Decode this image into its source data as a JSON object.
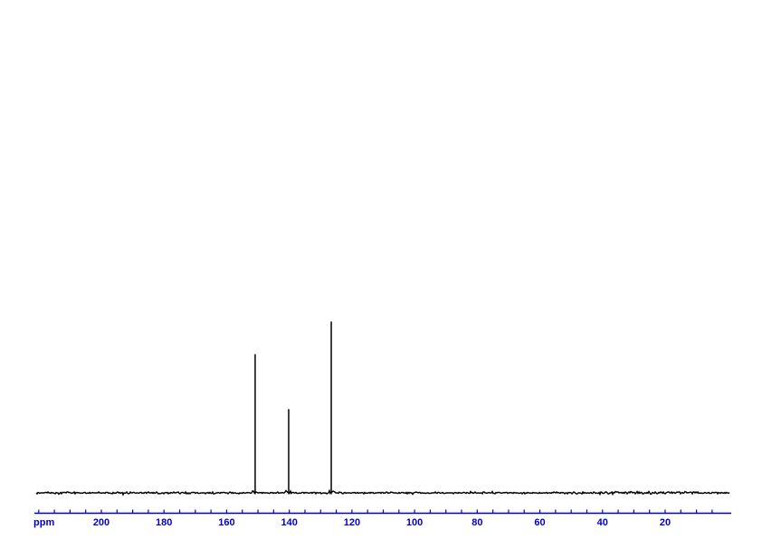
{
  "figure": {
    "kind": "nmr-spectrum-plot",
    "background_color": "#ffffff"
  },
  "chart_data": {
    "type": "line",
    "subtype": "nmr-spectrum",
    "title": "",
    "x_unit_label": "ppm",
    "x_axis": {
      "label": "ppm",
      "direction": "decreasing",
      "range_ppm": [
        221.4,
        -1.0
      ],
      "ticks_labeled": [
        200,
        180,
        160,
        140,
        120,
        100,
        80,
        60,
        40,
        20
      ],
      "minor_tick_step_ppm": 5,
      "minor_tick_first_ppm": 220,
      "minor_tick_last_ppm": 5,
      "axis_color": "#0000cc"
    },
    "peaks": [
      {
        "ppm": 150.9,
        "rel_intensity": 0.81
      },
      {
        "ppm": 140.2,
        "rel_intensity": 0.49
      },
      {
        "ppm": 126.6,
        "rel_intensity": 1.0
      }
    ],
    "baseline": {
      "description": "flat noisy baseline spanning full spectral width",
      "trace_color": "#000000"
    },
    "legend": null,
    "grid": false
  }
}
